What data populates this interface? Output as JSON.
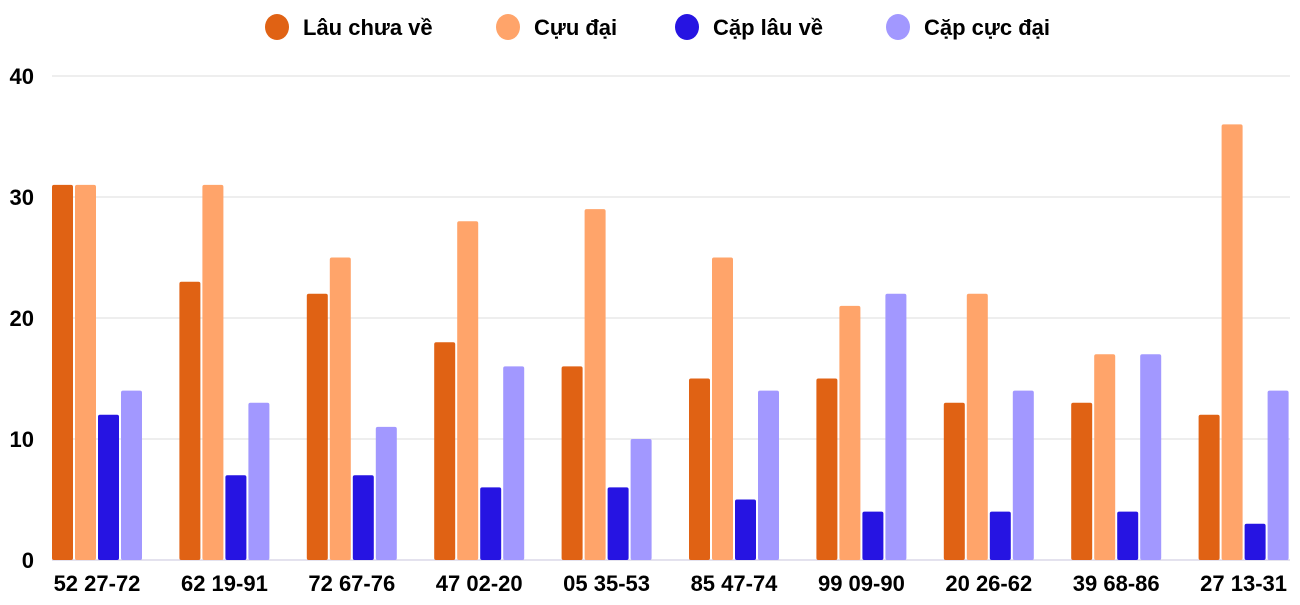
{
  "chart_data": {
    "type": "bar",
    "categories": [
      "52 27-72",
      "62 19-91",
      "72 67-76",
      "47 02-20",
      "05 35-53",
      "85 47-74",
      "99 09-90",
      "20 26-62",
      "39 68-86",
      "27 13-31"
    ],
    "series": [
      {
        "name": "Lâu chưa về",
        "color": "#e06214",
        "values": [
          31,
          23,
          22,
          18,
          16,
          15,
          15,
          13,
          13,
          12
        ]
      },
      {
        "name": "Cựu đại",
        "color": "#ffa46a",
        "values": [
          31,
          31,
          25,
          28,
          29,
          25,
          21,
          22,
          17,
          36
        ]
      },
      {
        "name": "Cặp lâu về",
        "color": "#2614e2",
        "values": [
          12,
          7,
          7,
          6,
          6,
          5,
          4,
          4,
          4,
          3
        ]
      },
      {
        "name": "Cặp cực đại",
        "color": "#a298ff",
        "values": [
          14,
          13,
          11,
          16,
          10,
          14,
          22,
          14,
          17,
          14
        ]
      }
    ],
    "ylim": [
      0,
      40
    ],
    "yticks": [
      0,
      10,
      20,
      30,
      40
    ],
    "grid": true,
    "legend": "top",
    "xlabel": "",
    "ylabel": ""
  }
}
